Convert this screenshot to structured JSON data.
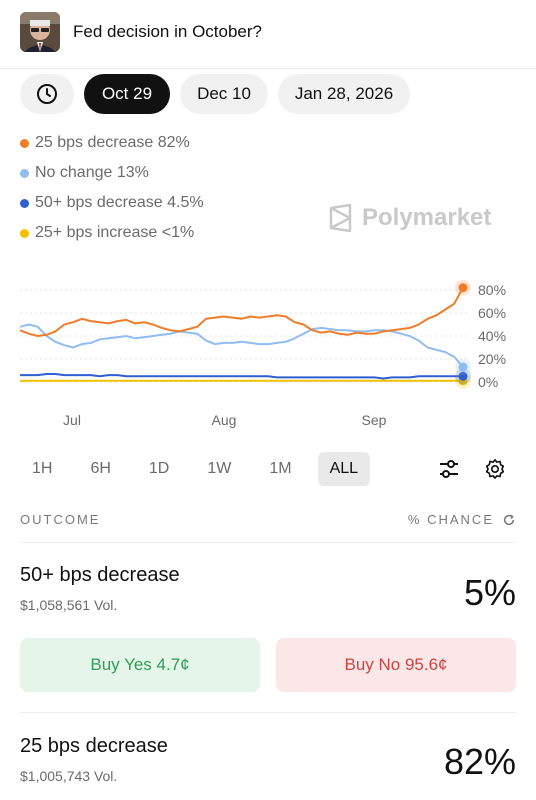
{
  "header": {
    "title": "Fed decision in October?"
  },
  "date_chips": [
    {
      "label": "Oct 29",
      "active": true
    },
    {
      "label": "Dec 10",
      "active": false
    },
    {
      "label": "Jan 28, 2026",
      "active": false
    }
  ],
  "legend": [
    {
      "label": "25 bps decrease 82%",
      "color": "#f07c2a"
    },
    {
      "label": "No change 13%",
      "color": "#8fbdf0"
    },
    {
      "label": "50+ bps decrease 4.5%",
      "color": "#2f5fd0"
    },
    {
      "label": "25+ bps increase <1%",
      "color": "#f2c200"
    }
  ],
  "brand": {
    "name": "Polymarket"
  },
  "time_ranges": [
    {
      "label": "1H",
      "active": false
    },
    {
      "label": "6H",
      "active": false
    },
    {
      "label": "1D",
      "active": false
    },
    {
      "label": "1W",
      "active": false
    },
    {
      "label": "1M",
      "active": false
    },
    {
      "label": "ALL",
      "active": true
    }
  ],
  "outcome_header": {
    "left": "OUTCOME",
    "right": "% CHANCE"
  },
  "outcomes": [
    {
      "name": "50+ bps decrease",
      "volume": "$1,058,561 Vol.",
      "chance": "5%",
      "buy_yes": "Buy Yes 4.7¢",
      "buy_no": "Buy No 95.6¢"
    },
    {
      "name": "25 bps decrease",
      "volume": "$1,005,743 Vol.",
      "chance": "82%"
    }
  ],
  "chart_data": {
    "type": "line",
    "x_ticks": [
      "Jul",
      "Aug",
      "Sep"
    ],
    "y_ticks": [
      "80%",
      "60%",
      "40%",
      "20%",
      "0%"
    ],
    "ylim": [
      0,
      100
    ],
    "grid": true,
    "x": [
      0,
      2,
      4,
      6,
      8,
      10,
      12,
      14,
      16,
      18,
      20,
      22,
      24,
      26,
      28,
      30,
      32,
      34,
      36,
      38,
      40,
      42,
      44,
      46,
      48,
      50,
      52,
      54,
      56,
      58,
      60,
      62,
      64,
      66,
      68,
      70,
      72,
      74,
      76,
      78,
      80,
      82,
      84,
      86,
      88,
      90,
      92,
      94,
      96,
      98,
      100
    ],
    "series": [
      {
        "name": "25 bps decrease",
        "color": "#f07c2a",
        "values": [
          45,
          42,
          40,
          41,
          44,
          50,
          52,
          55,
          53,
          52,
          51,
          53,
          54,
          51,
          52,
          50,
          47,
          45,
          44,
          46,
          48,
          55,
          56,
          57,
          56,
          55,
          57,
          56,
          57,
          58,
          57,
          52,
          50,
          45,
          43,
          44,
          42,
          41,
          43,
          42,
          42,
          44,
          45,
          46,
          47,
          50,
          55,
          58,
          63,
          68,
          82
        ]
      },
      {
        "name": "No change",
        "color": "#8fbdf0",
        "values": [
          48,
          50,
          48,
          40,
          35,
          32,
          30,
          33,
          34,
          37,
          38,
          39,
          40,
          38,
          39,
          40,
          41,
          42,
          44,
          43,
          42,
          36,
          33,
          34,
          34,
          35,
          34,
          33,
          33,
          34,
          35,
          38,
          42,
          46,
          47,
          46,
          45,
          45,
          44,
          44,
          45,
          45,
          44,
          42,
          40,
          36,
          30,
          28,
          26,
          22,
          13
        ]
      },
      {
        "name": "50+ bps decrease",
        "color": "#2f5fd0",
        "values": [
          6,
          6,
          6,
          7,
          7,
          6,
          6,
          6,
          6,
          5,
          6,
          6,
          5,
          5,
          5,
          5,
          5,
          5,
          5,
          5,
          5,
          5,
          5,
          5,
          5,
          5,
          5,
          5,
          5,
          4,
          4,
          4,
          4,
          4,
          4,
          4,
          4,
          4,
          4,
          4,
          4,
          3,
          4,
          4,
          4,
          5,
          5,
          5,
          5,
          5,
          5
        ]
      },
      {
        "name": "25+ bps increase",
        "color": "#f2c200",
        "values": [
          1,
          1,
          1,
          1,
          1,
          1,
          1,
          1,
          1,
          1,
          1,
          1,
          1,
          1,
          1,
          1,
          1,
          1,
          1,
          1,
          1,
          1,
          1,
          1,
          1,
          1,
          1,
          1,
          1,
          1,
          1,
          1,
          1,
          1,
          1,
          1,
          1,
          1,
          1,
          1,
          1,
          1,
          1,
          1,
          1,
          1,
          1,
          1,
          1,
          1,
          1
        ]
      }
    ]
  }
}
